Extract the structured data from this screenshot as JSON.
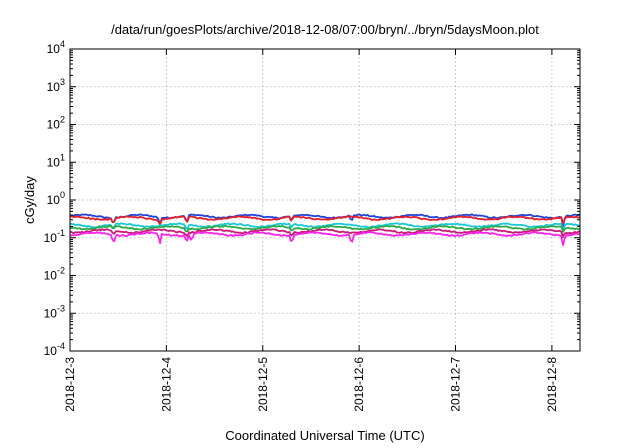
{
  "chart_data": {
    "type": "line",
    "title": "/data/run/goesPlots/archive/2018-12-08/07:00/bryn/../bryn/5daysMoon.plot",
    "xlabel": "Coordinated Universal Time (UTC)",
    "ylabel": "cGy/day",
    "yscale": "log",
    "ylim": [
      0.0001,
      10000
    ],
    "y_ticks": [
      {
        "value": 0.0001,
        "base": "10",
        "exp": "-4"
      },
      {
        "value": 0.001,
        "base": "10",
        "exp": "-3"
      },
      {
        "value": 0.01,
        "base": "10",
        "exp": "-2"
      },
      {
        "value": 0.1,
        "base": "10",
        "exp": "-1"
      },
      {
        "value": 1,
        "base": "10",
        "exp": "0"
      },
      {
        "value": 10,
        "base": "10",
        "exp": "1"
      },
      {
        "value": 100,
        "base": "10",
        "exp": "2"
      },
      {
        "value": 1000,
        "base": "10",
        "exp": "3"
      },
      {
        "value": 10000,
        "base": "10",
        "exp": "4"
      }
    ],
    "xlim": [
      "2018-12-03T00:00",
      "2018-12-08T07:00"
    ],
    "x_ticks": [
      "2018-12-3",
      "2018-12-4",
      "2018-12-5",
      "2018-12-6",
      "2018-12-7",
      "2018-12-8"
    ],
    "grid": true,
    "legend": "none",
    "series": [
      {
        "color": "#2244dd",
        "base": 0.37,
        "dips": [
          [
            0.45,
            0.6
          ],
          [
            0.93,
            0.6
          ],
          [
            1.21,
            0.55
          ],
          [
            2.3,
            0.7
          ],
          [
            2.92,
            0.6
          ],
          [
            5.12,
            0.5
          ]
        ]
      },
      {
        "color": "#e0202a",
        "base": 0.33,
        "dips": [
          [
            0.45,
            0.7
          ],
          [
            0.93,
            0.7
          ],
          [
            1.21,
            0.65
          ],
          [
            2.3,
            0.75
          ],
          [
            5.12,
            0.6
          ]
        ]
      },
      {
        "color": "#18c8d8",
        "base": 0.215,
        "dips": [
          [
            0.45,
            0.7
          ],
          [
            1.21,
            0.7
          ],
          [
            2.3,
            0.75
          ],
          [
            5.12,
            0.55
          ]
        ]
      },
      {
        "color": "#2eaa44",
        "base": 0.185,
        "dips": [
          [
            0.45,
            0.8
          ],
          [
            1.21,
            0.75
          ],
          [
            2.3,
            0.8
          ],
          [
            5.12,
            0.7
          ]
        ]
      },
      {
        "color": "#c81a78",
        "base": 0.15,
        "dips": [
          [
            0.45,
            0.75
          ],
          [
            1.21,
            0.7
          ],
          [
            2.3,
            0.8
          ],
          [
            5.12,
            0.7
          ]
        ]
      },
      {
        "color": "#ff22ee",
        "base": 0.125,
        "dips": [
          [
            0.45,
            0.5
          ],
          [
            0.93,
            0.45
          ],
          [
            1.21,
            0.55
          ],
          [
            1.26,
            0.6
          ],
          [
            2.3,
            0.55
          ],
          [
            2.92,
            0.45
          ],
          [
            5.12,
            0.5
          ]
        ]
      }
    ]
  }
}
